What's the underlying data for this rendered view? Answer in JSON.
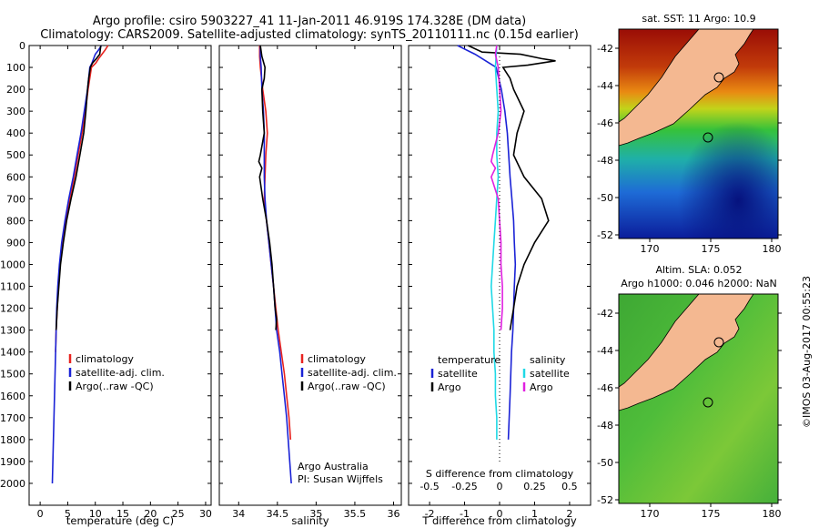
{
  "header": {
    "title_line1": "Argo profile: csiro 5903227_41 11-Jan-2011 46.919S 174.328E (DM data)",
    "title_line2": "Climatology: CARS2009. Satellite-adjusted climatology: synTS_20110111.nc (0.15d earlier)"
  },
  "colors": {
    "climatology": "#e8231f",
    "satellite": "#1a22d6",
    "argo": "#000000",
    "argo_sal_diff": "#e020e0",
    "sat_sal_diff": "#1fd9e6"
  },
  "chart_data": [
    {
      "id": "temperature",
      "type": "line",
      "xlabel": "temperature (deg C)",
      "ylabel": "",
      "xlim": [
        -2,
        31
      ],
      "ylim": [
        0,
        2100
      ],
      "xticks": [
        0,
        5,
        10,
        15,
        20,
        25,
        30
      ],
      "yticks": [
        0,
        100,
        200,
        300,
        400,
        500,
        600,
        700,
        800,
        900,
        1000,
        1100,
        1200,
        1300,
        1400,
        1500,
        1600,
        1700,
        1800,
        1900,
        2000
      ],
      "legend": [
        "climatology",
        "satellite-adj. clim.",
        "Argo(..raw -QC)"
      ],
      "series": [
        {
          "name": "climatology",
          "points": [
            [
              12.3,
              0
            ],
            [
              11.8,
              20
            ],
            [
              11.2,
              40
            ],
            [
              10.6,
              60
            ],
            [
              10.1,
              80
            ],
            [
              9.3,
              100
            ],
            [
              8.7,
              200
            ],
            [
              8.2,
              300
            ],
            [
              7.6,
              400
            ],
            [
              6.9,
              500
            ],
            [
              6.2,
              600
            ],
            [
              5.4,
              700
            ],
            [
              4.6,
              800
            ],
            [
              4.0,
              900
            ],
            [
              3.6,
              1000
            ],
            [
              3.3,
              1100
            ],
            [
              3.1,
              1200
            ],
            [
              2.9,
              1300
            ],
            [
              2.8,
              1400
            ]
          ]
        },
        {
          "name": "satellite-adj. clim.",
          "points": [
            [
              11.1,
              0
            ],
            [
              10.6,
              20
            ],
            [
              10.0,
              40
            ],
            [
              9.7,
              60
            ],
            [
              9.4,
              80
            ],
            [
              9.0,
              100
            ],
            [
              8.6,
              200
            ],
            [
              8.0,
              300
            ],
            [
              7.4,
              400
            ],
            [
              6.7,
              500
            ],
            [
              6.0,
              600
            ],
            [
              5.2,
              700
            ],
            [
              4.5,
              800
            ],
            [
              3.9,
              900
            ],
            [
              3.5,
              1000
            ],
            [
              3.2,
              1100
            ],
            [
              3.0,
              1200
            ],
            [
              2.8,
              1400
            ],
            [
              2.6,
              1600
            ],
            [
              2.4,
              1800
            ],
            [
              2.2,
              2000
            ]
          ]
        },
        {
          "name": "Argo(..raw -QC)",
          "points": [
            [
              11.0,
              0
            ],
            [
              10.9,
              20
            ],
            [
              10.8,
              40
            ],
            [
              10.2,
              60
            ],
            [
              9.5,
              80
            ],
            [
              9.1,
              100
            ],
            [
              8.8,
              150
            ],
            [
              8.6,
              200
            ],
            [
              8.3,
              300
            ],
            [
              7.9,
              400
            ],
            [
              7.2,
              500
            ],
            [
              6.5,
              600
            ],
            [
              5.6,
              700
            ],
            [
              4.8,
              800
            ],
            [
              4.2,
              900
            ],
            [
              3.7,
              1000
            ],
            [
              3.4,
              1100
            ],
            [
              3.1,
              1200
            ],
            [
              2.9,
              1300
            ]
          ]
        }
      ]
    },
    {
      "id": "salinity",
      "type": "line",
      "xlabel": "salinity",
      "xlim": [
        33.75,
        36.1
      ],
      "ylim": [
        0,
        2100
      ],
      "xticks": [
        34,
        34.5,
        35,
        35.5,
        36
      ],
      "legend": [
        "climatology",
        "satellite-adj. clim.",
        "Argo(..raw -QC)"
      ],
      "annotation": [
        "Argo Australia",
        "PI: Susan Wijffels"
      ],
      "series": [
        {
          "name": "climatology",
          "points": [
            [
              34.27,
              0
            ],
            [
              34.27,
              50
            ],
            [
              34.28,
              100
            ],
            [
              34.31,
              200
            ],
            [
              34.35,
              300
            ],
            [
              34.37,
              400
            ],
            [
              34.35,
              500
            ],
            [
              34.34,
              600
            ],
            [
              34.33,
              700
            ],
            [
              34.36,
              800
            ],
            [
              34.39,
              900
            ],
            [
              34.42,
              1000
            ],
            [
              34.45,
              1100
            ],
            [
              34.48,
              1200
            ],
            [
              34.51,
              1300
            ],
            [
              34.55,
              1400
            ],
            [
              34.59,
              1500
            ],
            [
              34.62,
              1600
            ],
            [
              34.65,
              1700
            ],
            [
              34.67,
              1800
            ]
          ]
        },
        {
          "name": "satellite-adj. clim.",
          "points": [
            [
              34.28,
              0
            ],
            [
              34.28,
              50
            ],
            [
              34.29,
              100
            ],
            [
              34.3,
              200
            ],
            [
              34.32,
              300
            ],
            [
              34.33,
              400
            ],
            [
              34.33,
              500
            ],
            [
              34.33,
              600
            ],
            [
              34.34,
              700
            ],
            [
              34.36,
              800
            ],
            [
              34.39,
              900
            ],
            [
              34.42,
              1000
            ],
            [
              34.45,
              1100
            ],
            [
              34.47,
              1200
            ],
            [
              34.49,
              1300
            ],
            [
              34.53,
              1400
            ],
            [
              34.56,
              1500
            ],
            [
              34.59,
              1600
            ],
            [
              34.62,
              1700
            ],
            [
              34.64,
              1800
            ],
            [
              34.66,
              1900
            ],
            [
              34.68,
              2000
            ]
          ]
        },
        {
          "name": "Argo(..raw -QC)",
          "points": [
            [
              34.28,
              0
            ],
            [
              34.3,
              50
            ],
            [
              34.34,
              100
            ],
            [
              34.33,
              150
            ],
            [
              34.3,
              200
            ],
            [
              34.31,
              300
            ],
            [
              34.33,
              400
            ],
            [
              34.28,
              500
            ],
            [
              34.26,
              530
            ],
            [
              34.3,
              560
            ],
            [
              34.27,
              600
            ],
            [
              34.31,
              700
            ],
            [
              34.36,
              800
            ],
            [
              34.4,
              900
            ],
            [
              34.43,
              1000
            ],
            [
              34.45,
              1100
            ],
            [
              34.47,
              1200
            ],
            [
              34.49,
              1250
            ],
            [
              34.48,
              1300
            ]
          ]
        }
      ]
    },
    {
      "id": "difference",
      "type": "line",
      "xlabel": "T difference from climatology",
      "xlabel_top": "S difference from climatology",
      "xlim": [
        -2.6,
        2.6
      ],
      "ylim": [
        0,
        2100
      ],
      "xticks": [
        -2,
        -1,
        0,
        1,
        2
      ],
      "xticks_top": [
        "-0.5",
        "-0.25",
        "0",
        "0.25",
        "0.5"
      ],
      "legend_headers": [
        "temperature",
        "salinity"
      ],
      "legend": [
        "satellite",
        "Argo",
        "satellite",
        "Argo"
      ],
      "series": [
        {
          "name": "temperature satellite",
          "points": [
            [
              -1.2,
              0
            ],
            [
              -0.7,
              40
            ],
            [
              -0.3,
              80
            ],
            [
              -0.1,
              100
            ],
            [
              0.05,
              200
            ],
            [
              0.15,
              300
            ],
            [
              0.22,
              400
            ],
            [
              0.26,
              500
            ],
            [
              0.3,
              600
            ],
            [
              0.35,
              700
            ],
            [
              0.4,
              800
            ],
            [
              0.42,
              900
            ],
            [
              0.45,
              1000
            ],
            [
              0.42,
              1100
            ],
            [
              0.4,
              1200
            ],
            [
              0.38,
              1300
            ],
            [
              0.34,
              1400
            ],
            [
              0.3,
              1600
            ],
            [
              0.25,
              1800
            ]
          ]
        },
        {
          "name": "temperature Argo",
          "points": [
            [
              -0.9,
              0
            ],
            [
              -0.5,
              30
            ],
            [
              0.6,
              40
            ],
            [
              1.2,
              60
            ],
            [
              1.6,
              70
            ],
            [
              0.8,
              90
            ],
            [
              0.1,
              100
            ],
            [
              0.3,
              150
            ],
            [
              0.4,
              200
            ],
            [
              0.7,
              300
            ],
            [
              0.5,
              400
            ],
            [
              0.4,
              500
            ],
            [
              0.7,
              600
            ],
            [
              1.2,
              700
            ],
            [
              1.4,
              800
            ],
            [
              1.0,
              900
            ],
            [
              0.7,
              1000
            ],
            [
              0.5,
              1100
            ],
            [
              0.4,
              1200
            ],
            [
              0.3,
              1300
            ]
          ]
        },
        {
          "name": "salinity satellite",
          "points": [
            [
              -0.02,
              0
            ],
            [
              -0.03,
              100
            ],
            [
              -0.02,
              200
            ],
            [
              -0.01,
              300
            ],
            [
              -0.02,
              400
            ],
            [
              -0.02,
              500
            ],
            [
              -0.01,
              600
            ],
            [
              -0.02,
              700
            ],
            [
              -0.03,
              800
            ],
            [
              -0.04,
              900
            ],
            [
              -0.05,
              1000
            ],
            [
              -0.06,
              1100
            ],
            [
              -0.05,
              1200
            ],
            [
              -0.04,
              1300
            ],
            [
              -0.04,
              1400
            ],
            [
              -0.03,
              1500
            ],
            [
              -0.03,
              1600
            ],
            [
              -0.02,
              1700
            ],
            [
              -0.02,
              1800
            ]
          ]
        },
        {
          "name": "salinity Argo",
          "points": [
            [
              -0.02,
              0
            ],
            [
              -0.03,
              40
            ],
            [
              -0.01,
              100
            ],
            [
              0.0,
              200
            ],
            [
              0.01,
              300
            ],
            [
              -0.01,
              400
            ],
            [
              -0.05,
              500
            ],
            [
              -0.06,
              530
            ],
            [
              -0.03,
              560
            ],
            [
              -0.06,
              600
            ],
            [
              -0.01,
              700
            ],
            [
              0.0,
              800
            ],
            [
              0.01,
              900
            ],
            [
              0.01,
              1000
            ],
            [
              0.02,
              1100
            ],
            [
              0.02,
              1200
            ],
            [
              0.01,
              1300
            ]
          ]
        }
      ]
    }
  ],
  "maps": [
    {
      "id": "sst-map",
      "title_lines": [
        "sat. SST: 11 Argo: 10.9"
      ],
      "lat_ticks": [
        "-42",
        "-44",
        "-46",
        "-48",
        "-50",
        "-52"
      ],
      "lon_ticks": [
        "170",
        "175",
        "180"
      ],
      "colorbar": false
    },
    {
      "id": "sla-map",
      "title_lines": [
        "Altim. SLA: 0.052",
        "Argo h1000: 0.046 h2000: NaN"
      ],
      "lat_ticks": [
        "-42",
        "-44",
        "-46",
        "-48",
        "-50",
        "-52"
      ],
      "lon_ticks": [
        "170",
        "175",
        "180"
      ]
    }
  ],
  "credit": "©IMOS 03-Aug-2017 00:55:23"
}
